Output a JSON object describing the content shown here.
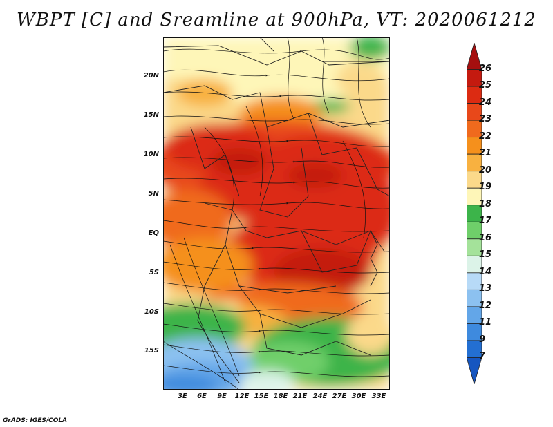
{
  "title": "WBPT [C] and Sreamline at 900hPa, VT: 2020061212",
  "footer": "GrADS: IGES/COLA",
  "map": {
    "lat_labels": [
      "20N",
      "15N",
      "10N",
      "5N",
      "EQ",
      "5S",
      "10S",
      "15S"
    ],
    "lon_labels": [
      "3E",
      "6E",
      "9E",
      "12E",
      "15E",
      "18E",
      "21E",
      "24E",
      "27E",
      "30E",
      "33E"
    ],
    "variable": "Wet-bulb potential temperature",
    "units": "C",
    "level": "900hPa",
    "valid_time": "2020061212"
  },
  "colorbar": {
    "labels": [
      "26",
      "25",
      "24",
      "23",
      "22",
      "21",
      "20",
      "19",
      "18",
      "17",
      "16",
      "15",
      "14",
      "13",
      "12",
      "11",
      "9",
      "7"
    ],
    "colors": [
      "#a50f0f",
      "#c41a0f",
      "#dc2b12",
      "#e8481a",
      "#f06a1d",
      "#f5901c",
      "#f8b140",
      "#fbd98a",
      "#fef6b8",
      "#3cb44a",
      "#6fcf6a",
      "#a4e29a",
      "#dcf3e8",
      "#b7daf7",
      "#8cc1f0",
      "#63a6e8",
      "#3e8ade",
      "#236fd2",
      "#1656c0"
    ]
  }
}
